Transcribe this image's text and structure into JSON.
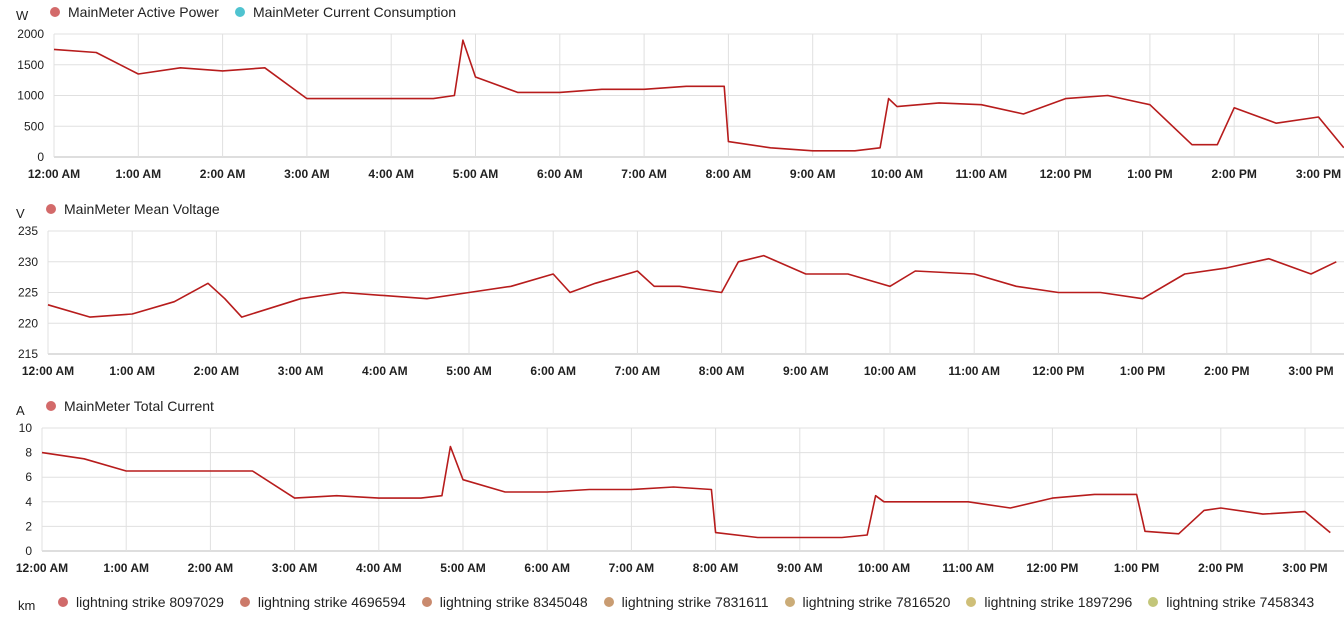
{
  "x_ticks": [
    "12:00 AM",
    "1:00 AM",
    "2:00 AM",
    "3:00 AM",
    "4:00 AM",
    "5:00 AM",
    "6:00 AM",
    "7:00 AM",
    "8:00 AM",
    "9:00 AM",
    "10:00 AM",
    "11:00 AM",
    "12:00 PM",
    "1:00 PM",
    "2:00 PM",
    "3:00 PM"
  ],
  "colors": {
    "line": "#b71c1c",
    "teal": "#4fc3d0",
    "grid": "#e0e0e0",
    "dot_red": "#d36a6a"
  },
  "chart_data": [
    {
      "type": "line",
      "unit": "W",
      "ylim": [
        0,
        2000
      ],
      "yticks": [
        0,
        500,
        1000,
        1500,
        2000
      ],
      "xlim_hours": [
        0,
        15.3
      ],
      "legend": [
        {
          "name": "MainMeter Active Power",
          "color": "#d36a6a"
        },
        {
          "name": "MainMeter Current Consumption",
          "color": "#4fc3d0"
        }
      ],
      "series": [
        {
          "name": "MainMeter Active Power",
          "points": [
            [
              0,
              1750
            ],
            [
              0.5,
              1700
            ],
            [
              1.0,
              1350
            ],
            [
              1.5,
              1450
            ],
            [
              2.0,
              1400
            ],
            [
              2.5,
              1450
            ],
            [
              3.0,
              950
            ],
            [
              3.5,
              950
            ],
            [
              4.0,
              950
            ],
            [
              4.5,
              950
            ],
            [
              4.75,
              1000
            ],
            [
              4.85,
              1900
            ],
            [
              5.0,
              1300
            ],
            [
              5.5,
              1050
            ],
            [
              6.0,
              1050
            ],
            [
              6.5,
              1100
            ],
            [
              7.0,
              1100
            ],
            [
              7.5,
              1150
            ],
            [
              7.95,
              1150
            ],
            [
              8.0,
              250
            ],
            [
              8.5,
              150
            ],
            [
              9.0,
              100
            ],
            [
              9.5,
              100
            ],
            [
              9.8,
              150
            ],
            [
              9.9,
              950
            ],
            [
              10.0,
              820
            ],
            [
              10.5,
              880
            ],
            [
              11.0,
              850
            ],
            [
              11.5,
              700
            ],
            [
              12.0,
              950
            ],
            [
              12.5,
              1000
            ],
            [
              13.0,
              850
            ],
            [
              13.5,
              200
            ],
            [
              13.8,
              200
            ],
            [
              14.0,
              800
            ],
            [
              14.5,
              550
            ],
            [
              15.0,
              650
            ],
            [
              15.3,
              150
            ]
          ]
        }
      ]
    },
    {
      "type": "line",
      "unit": "V",
      "ylim": [
        215,
        235
      ],
      "yticks": [
        215,
        220,
        225,
        230,
        235
      ],
      "xlim_hours": [
        0,
        15.3
      ],
      "legend": [
        {
          "name": "MainMeter Mean Voltage",
          "color": "#d36a6a"
        }
      ],
      "series": [
        {
          "name": "MainMeter Mean Voltage",
          "points": [
            [
              0,
              223
            ],
            [
              0.5,
              221
            ],
            [
              1.0,
              221.5
            ],
            [
              1.5,
              223.5
            ],
            [
              1.9,
              226.5
            ],
            [
              2.1,
              224
            ],
            [
              2.3,
              221
            ],
            [
              3.0,
              224
            ],
            [
              3.5,
              225
            ],
            [
              4.0,
              224.5
            ],
            [
              4.5,
              224
            ],
            [
              5.0,
              225
            ],
            [
              5.5,
              226
            ],
            [
              6.0,
              228
            ],
            [
              6.2,
              225
            ],
            [
              6.5,
              226.5
            ],
            [
              7.0,
              228.5
            ],
            [
              7.2,
              226
            ],
            [
              7.5,
              226
            ],
            [
              8.0,
              225
            ],
            [
              8.2,
              230
            ],
            [
              8.5,
              231
            ],
            [
              9.0,
              228
            ],
            [
              9.5,
              228
            ],
            [
              10.0,
              226
            ],
            [
              10.3,
              228.5
            ],
            [
              11.0,
              228
            ],
            [
              11.5,
              226
            ],
            [
              12.0,
              225
            ],
            [
              12.5,
              225
            ],
            [
              13.0,
              224
            ],
            [
              13.5,
              228
            ],
            [
              14.0,
              229
            ],
            [
              14.5,
              230.5
            ],
            [
              15.0,
              228
            ],
            [
              15.3,
              230
            ]
          ]
        }
      ]
    },
    {
      "type": "line",
      "unit": "A",
      "ylim": [
        0,
        10
      ],
      "yticks": [
        0,
        2,
        4,
        6,
        8,
        10
      ],
      "xlim_hours": [
        0,
        15.3
      ],
      "legend": [
        {
          "name": "MainMeter Total Current",
          "color": "#d36a6a"
        }
      ],
      "series": [
        {
          "name": "MainMeter Total Current",
          "points": [
            [
              0,
              8
            ],
            [
              0.5,
              7.5
            ],
            [
              1.0,
              6.5
            ],
            [
              1.5,
              6.5
            ],
            [
              2.0,
              6.5
            ],
            [
              2.5,
              6.5
            ],
            [
              3.0,
              4.3
            ],
            [
              3.5,
              4.5
            ],
            [
              4.0,
              4.3
            ],
            [
              4.5,
              4.3
            ],
            [
              4.75,
              4.5
            ],
            [
              4.85,
              8.5
            ],
            [
              5.0,
              5.8
            ],
            [
              5.5,
              4.8
            ],
            [
              6.0,
              4.8
            ],
            [
              6.5,
              5
            ],
            [
              7.0,
              5
            ],
            [
              7.5,
              5.2
            ],
            [
              7.95,
              5
            ],
            [
              8.0,
              1.5
            ],
            [
              8.5,
              1.1
            ],
            [
              9.0,
              1.1
            ],
            [
              9.5,
              1.1
            ],
            [
              9.8,
              1.3
            ],
            [
              9.9,
              4.5
            ],
            [
              10.0,
              4
            ],
            [
              10.5,
              4
            ],
            [
              11.0,
              4
            ],
            [
              11.5,
              3.5
            ],
            [
              12.0,
              4.3
            ],
            [
              12.5,
              4.6
            ],
            [
              13.0,
              4.6
            ],
            [
              13.1,
              1.6
            ],
            [
              13.5,
              1.4
            ],
            [
              13.8,
              3.3
            ],
            [
              14.0,
              3.5
            ],
            [
              14.5,
              3
            ],
            [
              15.0,
              3.2
            ],
            [
              15.3,
              1.5
            ]
          ]
        }
      ]
    }
  ],
  "bottom_legend": {
    "unit": "km",
    "items": [
      {
        "name": "lightning strike 8097029",
        "color": "#d06a6a"
      },
      {
        "name": "lightning strike 4696594",
        "color": "#cc7a6a"
      },
      {
        "name": "lightning strike 8345048",
        "color": "#c98a6e"
      },
      {
        "name": "lightning strike 7831611",
        "color": "#c99c72"
      },
      {
        "name": "lightning strike 7816520",
        "color": "#cbac78"
      },
      {
        "name": "lightning strike 1897296",
        "color": "#cfbf78"
      },
      {
        "name": "lightning strike 7458343",
        "color": "#c3c67a"
      }
    ]
  }
}
